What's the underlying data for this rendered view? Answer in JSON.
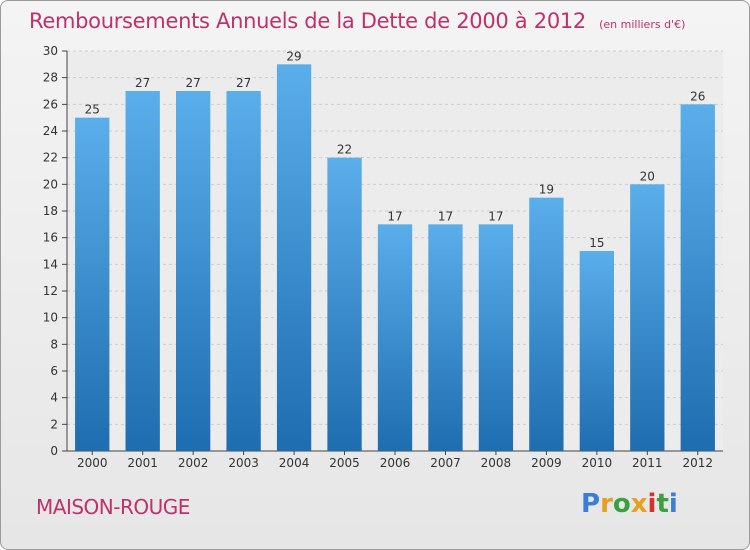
{
  "header": {
    "title": "Remboursements Annuels de la Dette de 2000 à 2012",
    "unit": "(en milliers d'€)"
  },
  "footer": {
    "place": "MAISON-ROUGE",
    "logo": {
      "text": "Proxiti",
      "colors": [
        "#3a7fd5",
        "#e8a020",
        "#3aa040",
        "#e8a020",
        "#d8302a",
        "#3aa040",
        "#3a7fd5"
      ]
    }
  },
  "colors": {
    "bar_light": "#5aaeea",
    "bar_dark": "#1e6db0",
    "accent": "#c0306a",
    "axis": "#444444",
    "grid": "#cccccc"
  },
  "chart_data": {
    "type": "bar",
    "title": "Remboursements Annuels de la Dette de 2000 à 2012",
    "xlabel": "",
    "ylabel": "",
    "ylim": [
      0,
      30
    ],
    "yticks": [
      0,
      2,
      4,
      6,
      8,
      10,
      12,
      14,
      16,
      18,
      20,
      22,
      24,
      26,
      28,
      30
    ],
    "grid": true,
    "categories": [
      "2000",
      "2001",
      "2002",
      "2003",
      "2004",
      "2005",
      "2006",
      "2007",
      "2008",
      "2009",
      "2010",
      "2011",
      "2012"
    ],
    "values": [
      25,
      27,
      27,
      27,
      29,
      22,
      17,
      17,
      17,
      19,
      15,
      20,
      26
    ]
  }
}
